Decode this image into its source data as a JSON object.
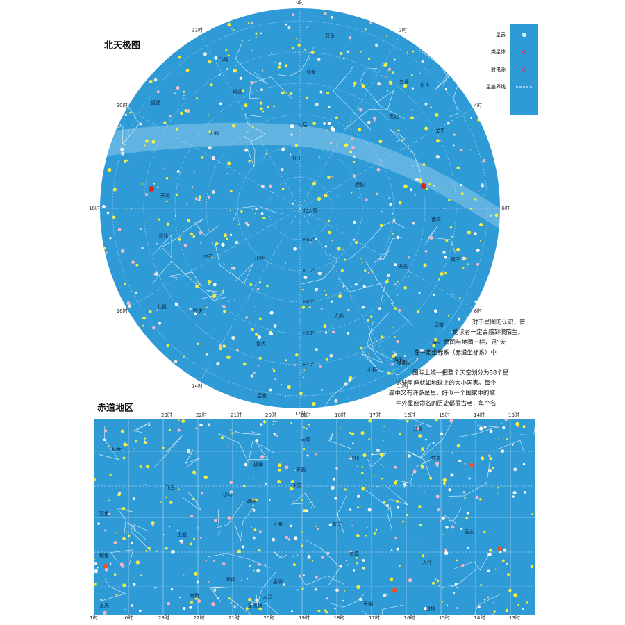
{
  "north_map": {
    "title": "北天极图",
    "hour_labels": [
      "0时",
      "2时",
      "4时",
      "6时",
      "8时",
      "10时",
      "12时",
      "14时",
      "16时",
      "18时",
      "20时",
      "22时"
    ],
    "dec_labels": [
      "+80°",
      "+70°",
      "+60°",
      "+50°",
      "+40°"
    ],
    "constellations": [
      "仙后",
      "仙王",
      "天鹅",
      "天琴",
      "武仙",
      "天龙",
      "小熊",
      "大熊",
      "鹿豹",
      "御夫",
      "英仙",
      "仙女",
      "三角",
      "白羊",
      "双鱼",
      "飞马",
      "蝎虎",
      "狐狸",
      "金牛",
      "双子",
      "天猫",
      "巨蟹",
      "狮子",
      "小狮",
      "后发",
      "猎犬",
      "牧夫",
      "北冕",
      "北天极"
    ]
  },
  "legend": {
    "items": [
      "星云",
      "类星体",
      "射电源",
      "星座界线"
    ]
  },
  "text": {
    "lines": [
      "对于星图的认识，普",
      "的读者一定会感到很陌生。",
      "实。星图与地图一样，是“天",
      "在一定坐标系（赤道坐标系）中",
      "投影。",
      "国际上统一把整个天空划分为88个星",
      "这些星座就如地球上的大小国家。每个",
      "座中又有许多星星，好似一个国家中的城",
      "中外星座命名的历史都很古老，每个名"
    ]
  },
  "equatorial_map": {
    "title": "赤道地区",
    "top_hour_labels": [
      "23时",
      "22时",
      "21时",
      "20时",
      "19时",
      "18时",
      "17时",
      "16时",
      "15时",
      "14时",
      "13时"
    ],
    "bottom_hour_labels": [
      "1时",
      "0时",
      "23时",
      "22时",
      "21时",
      "20时",
      "19时",
      "18时",
      "17时",
      "16时",
      "15时",
      "14时",
      "13时"
    ],
    "constellations": [
      "仙女",
      "双鱼",
      "鲸鱼",
      "飞马",
      "宝瓶",
      "摩羯",
      "小马",
      "海豚",
      "天箭",
      "狐狸",
      "天鹅",
      "天琴",
      "天鹰",
      "盾牌",
      "武仙",
      "蛇夫",
      "巨蛇",
      "北冕",
      "牧夫",
      "室女",
      "天秤",
      "人马",
      "天蝎",
      "豺狼",
      "南鱼",
      "玉夫",
      "显微镜"
    ]
  }
}
